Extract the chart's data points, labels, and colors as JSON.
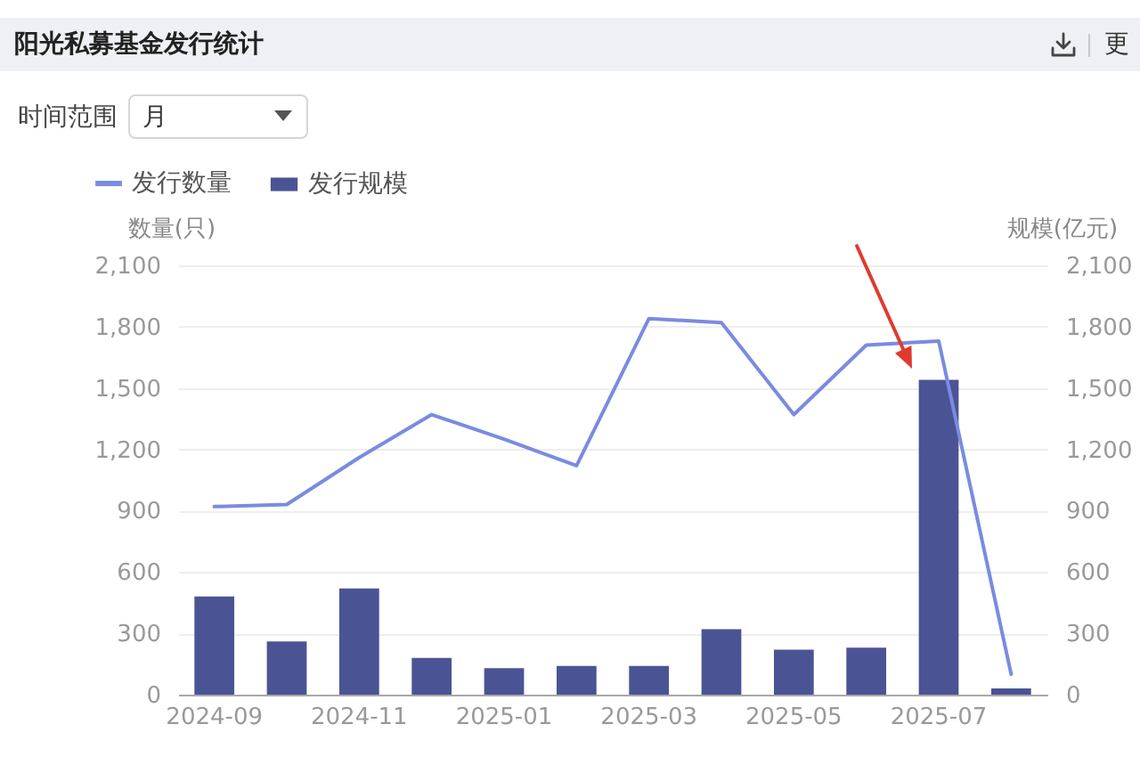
{
  "chart_data": {
    "type": "bar",
    "title": "阳光私募基金发行统计",
    "ylabel": "数量(只)",
    "y2label": "规模(亿元)",
    "annotations": [
      "时间范围",
      "月",
      "更"
    ],
    "categories": [
      "2024-09",
      null,
      "2024-11",
      null,
      "2025-01",
      null,
      "2025-03",
      null,
      "2025-05",
      null,
      "2025-07",
      null
    ],
    "series": [
      {
        "name": "发行数量",
        "type": "line",
        "color": "#7a8be0",
        "values": [
          920,
          930,
          1160,
          1370,
          1250,
          1120,
          1840,
          1820,
          1370,
          1710,
          1730,
          100
        ]
      },
      {
        "name": "发行规模",
        "axis": "y2",
        "color": "#4a5494",
        "values": [
          480,
          260,
          520,
          180,
          130,
          140,
          140,
          320,
          220,
          230,
          1540,
          30
        ]
      }
    ],
    "ylim": [
      0,
      2100
    ],
    "yticks": [
      0,
      300,
      600,
      900,
      {
        "value": 1200,
        "label": "1,200"
      },
      {
        "value": 1500,
        "label": "1,500"
      },
      {
        "value": 1800,
        "label": "1,800"
      },
      {
        "value": 2100,
        "label": "2,100"
      }
    ],
    "y2lim": [
      0,
      2100
    ],
    "y2ticks": [
      0,
      300,
      600,
      900,
      {
        "value": 1200,
        "label": "1,200"
      },
      {
        "value": 1500,
        "label": "1,500"
      },
      {
        "value": 1800,
        "label": "1,800"
      },
      {
        "value": 2100,
        "label": "2,100"
      }
    ],
    "grid": "y",
    "legend": "top left"
  }
}
